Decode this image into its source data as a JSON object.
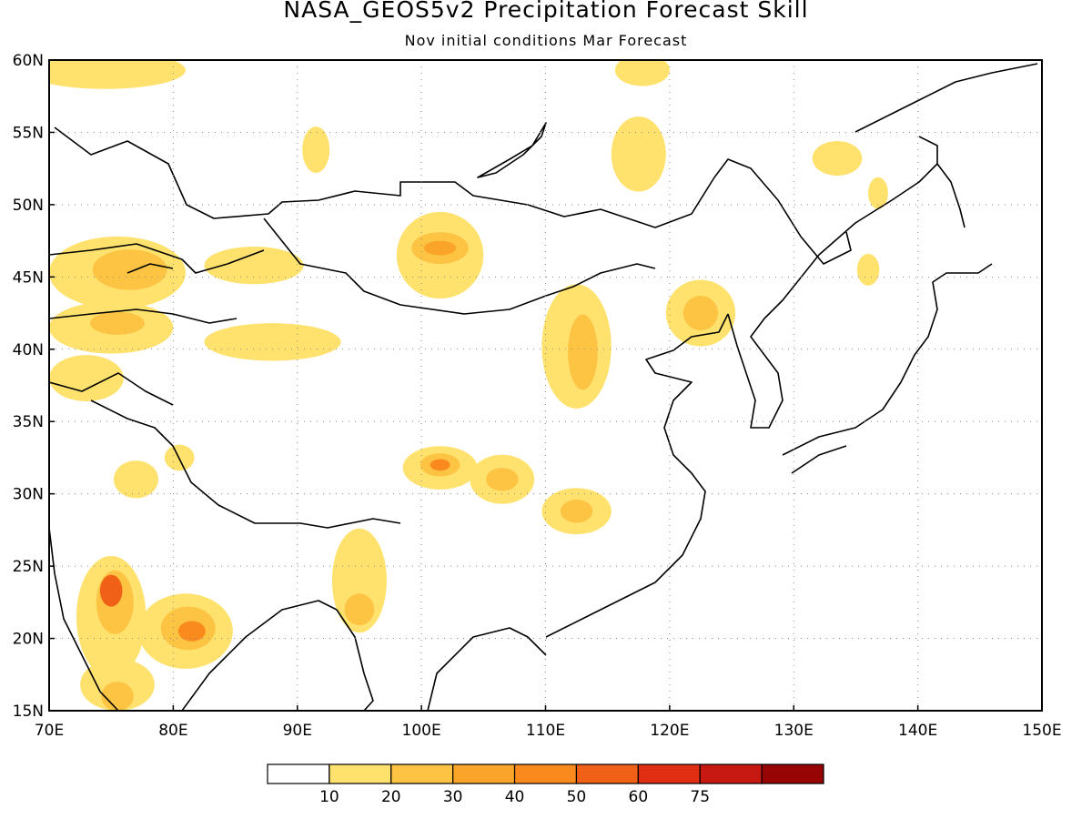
{
  "title": "NASA_GEOS5v2 Precipitation Forecast Skill",
  "subtitle": "Nov initial conditions  Mar Forecast",
  "map": {
    "lon_range": [
      70,
      150
    ],
    "lat_range": [
      15,
      60
    ],
    "lon_ticks": [
      "70E",
      "80E",
      "90E",
      "100E",
      "110E",
      "120E",
      "130E",
      "140E",
      "150E"
    ],
    "lat_ticks": [
      "60N",
      "55N",
      "50N",
      "45N",
      "40N",
      "35N",
      "30N",
      "25N",
      "20N",
      "15N"
    ],
    "grid": "dotted"
  },
  "legend": {
    "colors": [
      "#ffffff",
      "#ffe26e",
      "#fdc444",
      "#fba42a",
      "#fa8a1e",
      "#f06017",
      "#e02e12",
      "#c81812",
      "#960404"
    ],
    "labels": [
      "10",
      "20",
      "30",
      "40",
      "50",
      "60",
      "75"
    ]
  },
  "skill_regions": [
    {
      "lon": 74.5,
      "lat": 59.3,
      "rx": 6.5,
      "ry": 1.3,
      "level": 1
    },
    {
      "lon": 91.5,
      "lat": 53.8,
      "rx": 1.1,
      "ry": 1.6,
      "level": 1
    },
    {
      "lon": 117.5,
      "lat": 53.5,
      "rx": 2.2,
      "ry": 2.6,
      "level": 1
    },
    {
      "lon": 117.8,
      "lat": 59.3,
      "rx": 2.2,
      "ry": 1.1,
      "level": 1
    },
    {
      "lon": 133.5,
      "lat": 53.2,
      "rx": 2.0,
      "ry": 1.2,
      "level": 1
    },
    {
      "lon": 136.8,
      "lat": 50.8,
      "rx": 0.8,
      "ry": 1.1,
      "level": 1
    },
    {
      "lon": 75.5,
      "lat": 45.3,
      "rx": 5.5,
      "ry": 2.5,
      "level": 1
    },
    {
      "lon": 76.5,
      "lat": 45.5,
      "rx": 3.0,
      "ry": 1.4,
      "level": 2
    },
    {
      "lon": 86.5,
      "lat": 45.8,
      "rx": 4.0,
      "ry": 1.3,
      "level": 1
    },
    {
      "lon": 101.5,
      "lat": 46.5,
      "rx": 3.5,
      "ry": 3.0,
      "level": 1
    },
    {
      "lon": 101.5,
      "lat": 47.0,
      "rx": 2.3,
      "ry": 1.1,
      "level": 2
    },
    {
      "lon": 101.5,
      "lat": 47.0,
      "rx": 1.3,
      "ry": 0.5,
      "level": 3
    },
    {
      "lon": 75.0,
      "lat": 41.5,
      "rx": 5.0,
      "ry": 1.8,
      "level": 1
    },
    {
      "lon": 75.5,
      "lat": 41.8,
      "rx": 2.2,
      "ry": 0.8,
      "level": 2
    },
    {
      "lon": 88.0,
      "lat": 40.5,
      "rx": 5.5,
      "ry": 1.3,
      "level": 1
    },
    {
      "lon": 112.5,
      "lat": 40.2,
      "rx": 2.8,
      "ry": 4.3,
      "level": 1
    },
    {
      "lon": 113.0,
      "lat": 39.8,
      "rx": 1.2,
      "ry": 2.6,
      "level": 2
    },
    {
      "lon": 122.5,
      "lat": 42.5,
      "rx": 2.8,
      "ry": 2.3,
      "level": 1
    },
    {
      "lon": 122.5,
      "lat": 42.5,
      "rx": 1.4,
      "ry": 1.2,
      "level": 2
    },
    {
      "lon": 73.0,
      "lat": 38.0,
      "rx": 3.0,
      "ry": 1.6,
      "level": 1
    },
    {
      "lon": 136.0,
      "lat": 45.5,
      "rx": 0.9,
      "ry": 1.1,
      "level": 1
    },
    {
      "lon": 101.5,
      "lat": 31.8,
      "rx": 3.0,
      "ry": 1.5,
      "level": 1
    },
    {
      "lon": 101.5,
      "lat": 32.0,
      "rx": 1.6,
      "ry": 0.8,
      "level": 2
    },
    {
      "lon": 101.5,
      "lat": 32.0,
      "rx": 0.8,
      "ry": 0.4,
      "level": 4
    },
    {
      "lon": 106.5,
      "lat": 31.0,
      "rx": 2.6,
      "ry": 1.7,
      "level": 1
    },
    {
      "lon": 106.5,
      "lat": 31.0,
      "rx": 1.3,
      "ry": 0.8,
      "level": 2
    },
    {
      "lon": 112.5,
      "lat": 28.8,
      "rx": 2.8,
      "ry": 1.6,
      "level": 1
    },
    {
      "lon": 112.5,
      "lat": 28.8,
      "rx": 1.3,
      "ry": 0.8,
      "level": 2
    },
    {
      "lon": 77.0,
      "lat": 31.0,
      "rx": 1.8,
      "ry": 1.3,
      "level": 1
    },
    {
      "lon": 80.5,
      "lat": 32.5,
      "rx": 1.2,
      "ry": 0.9,
      "level": 1
    },
    {
      "lon": 95.0,
      "lat": 24.0,
      "rx": 2.2,
      "ry": 3.6,
      "level": 1
    },
    {
      "lon": 95.0,
      "lat": 22.0,
      "rx": 1.2,
      "ry": 1.1,
      "level": 2
    },
    {
      "lon": 75.0,
      "lat": 21.5,
      "rx": 2.8,
      "ry": 4.2,
      "level": 1
    },
    {
      "lon": 75.3,
      "lat": 22.5,
      "rx": 1.5,
      "ry": 2.2,
      "level": 2
    },
    {
      "lon": 75.0,
      "lat": 23.3,
      "rx": 0.9,
      "ry": 1.1,
      "level": 5
    },
    {
      "lon": 81.0,
      "lat": 20.5,
      "rx": 3.8,
      "ry": 2.6,
      "level": 1
    },
    {
      "lon": 81.2,
      "lat": 20.7,
      "rx": 2.2,
      "ry": 1.5,
      "level": 2
    },
    {
      "lon": 81.5,
      "lat": 20.5,
      "rx": 1.1,
      "ry": 0.7,
      "level": 4
    },
    {
      "lon": 75.5,
      "lat": 16.8,
      "rx": 3.0,
      "ry": 1.8,
      "level": 1
    },
    {
      "lon": 75.5,
      "lat": 16.0,
      "rx": 1.3,
      "ry": 1.0,
      "level": 2
    }
  ]
}
